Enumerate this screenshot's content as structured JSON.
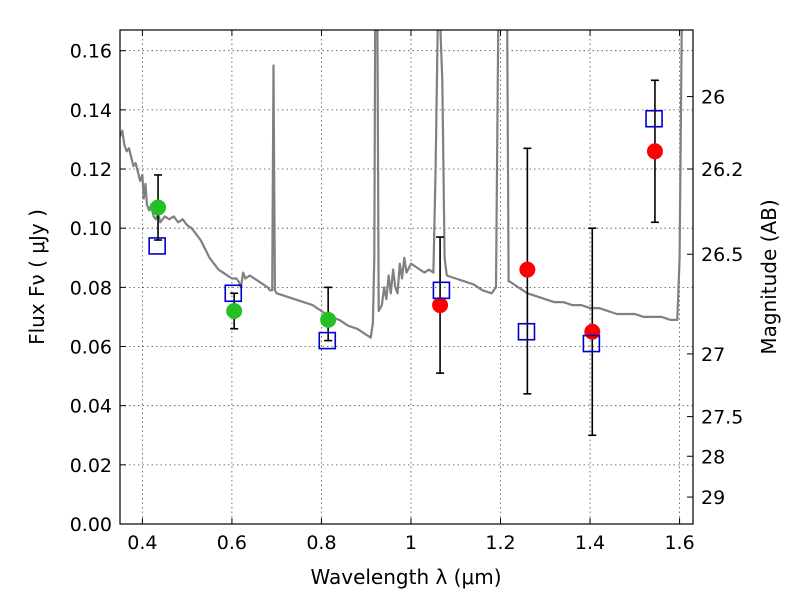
{
  "chart_data": {
    "type": "scatter",
    "title": "",
    "xlabel": "Wavelength  λ (μm)",
    "ylabel": "Flux  Fν  ( μJy )",
    "ylabel_right": "Magnitude (AB)",
    "xlim": [
      0.35,
      1.63
    ],
    "ylim": [
      0.0,
      0.167
    ],
    "grid": true,
    "x_ticks": [
      0.4,
      0.6,
      0.8,
      1.0,
      1.2,
      1.4,
      1.6
    ],
    "x_tick_labels": [
      "0.4",
      "0.6",
      "0.8",
      "1",
      "1.2",
      "1.4",
      "1.6"
    ],
    "y_ticks": [
      0.0,
      0.02,
      0.04,
      0.06,
      0.08,
      0.1,
      0.12,
      0.14,
      0.16
    ],
    "y_tick_labels": [
      "0.00",
      "0.02",
      "0.04",
      "0.06",
      "0.08",
      "0.10",
      "0.12",
      "0.14",
      "0.16"
    ],
    "right_ticks": [
      {
        "flux": 0.1445,
        "label": "26"
      },
      {
        "flux": 0.12,
        "label": "26.2"
      },
      {
        "flux": 0.0912,
        "label": "26.5"
      },
      {
        "flux": 0.0575,
        "label": "27"
      },
      {
        "flux": 0.0363,
        "label": "27.5"
      },
      {
        "flux": 0.0229,
        "label": "28"
      },
      {
        "flux": 0.0091,
        "label": "29"
      }
    ],
    "series": [
      {
        "kind": "model_spectrum",
        "color": "#808080",
        "points": [
          [
            0.35,
            0.131
          ],
          [
            0.355,
            0.133
          ],
          [
            0.36,
            0.128
          ],
          [
            0.365,
            0.126
          ],
          [
            0.37,
            0.127
          ],
          [
            0.375,
            0.124
          ],
          [
            0.38,
            0.121
          ],
          [
            0.385,
            0.122
          ],
          [
            0.39,
            0.119
          ],
          [
            0.395,
            0.116
          ],
          [
            0.4,
            0.118
          ],
          [
            0.403,
            0.11
          ],
          [
            0.407,
            0.115
          ],
          [
            0.41,
            0.108
          ],
          [
            0.415,
            0.106
          ],
          [
            0.42,
            0.108
          ],
          [
            0.425,
            0.104
          ],
          [
            0.43,
            0.103
          ],
          [
            0.435,
            0.105
          ],
          [
            0.44,
            0.102
          ],
          [
            0.45,
            0.104
          ],
          [
            0.46,
            0.103
          ],
          [
            0.47,
            0.104
          ],
          [
            0.48,
            0.102
          ],
          [
            0.49,
            0.103
          ],
          [
            0.5,
            0.101
          ],
          [
            0.51,
            0.1
          ],
          [
            0.52,
            0.098
          ],
          [
            0.53,
            0.096
          ],
          [
            0.54,
            0.093
          ],
          [
            0.55,
            0.09
          ],
          [
            0.56,
            0.088
          ],
          [
            0.57,
            0.086
          ],
          [
            0.58,
            0.085
          ],
          [
            0.59,
            0.084
          ],
          [
            0.6,
            0.083
          ],
          [
            0.61,
            0.083
          ],
          [
            0.615,
            0.082
          ],
          [
            0.62,
            0.08
          ],
          [
            0.625,
            0.085
          ],
          [
            0.63,
            0.083
          ],
          [
            0.64,
            0.084
          ],
          [
            0.65,
            0.083
          ],
          [
            0.66,
            0.082
          ],
          [
            0.67,
            0.081
          ],
          [
            0.68,
            0.08
          ],
          [
            0.685,
            0.079
          ],
          [
            0.69,
            0.079
          ],
          [
            0.693,
            0.155
          ],
          [
            0.696,
            0.079
          ],
          [
            0.7,
            0.078
          ],
          [
            0.72,
            0.077
          ],
          [
            0.74,
            0.076
          ],
          [
            0.76,
            0.075
          ],
          [
            0.78,
            0.074
          ],
          [
            0.8,
            0.072
          ],
          [
            0.82,
            0.07
          ],
          [
            0.84,
            0.069
          ],
          [
            0.86,
            0.067
          ],
          [
            0.88,
            0.066
          ],
          [
            0.9,
            0.064
          ],
          [
            0.91,
            0.063
          ],
          [
            0.915,
            0.068
          ],
          [
            0.918,
            0.09
          ],
          [
            0.92,
            0.17
          ],
          [
            0.925,
            0.17
          ],
          [
            0.928,
            0.072
          ],
          [
            0.935,
            0.074
          ],
          [
            0.94,
            0.08
          ],
          [
            0.945,
            0.076
          ],
          [
            0.95,
            0.084
          ],
          [
            0.955,
            0.078
          ],
          [
            0.96,
            0.086
          ],
          [
            0.965,
            0.08
          ],
          [
            0.97,
            0.078
          ],
          [
            0.975,
            0.088
          ],
          [
            0.98,
            0.083
          ],
          [
            0.985,
            0.09
          ],
          [
            0.99,
            0.085
          ],
          [
            1.0,
            0.088
          ],
          [
            1.01,
            0.087
          ],
          [
            1.02,
            0.086
          ],
          [
            1.03,
            0.085
          ],
          [
            1.04,
            0.086
          ],
          [
            1.05,
            0.085
          ],
          [
            1.055,
            0.12
          ],
          [
            1.06,
            0.17
          ],
          [
            1.065,
            0.17
          ],
          [
            1.07,
            0.15
          ],
          [
            1.075,
            0.09
          ],
          [
            1.08,
            0.084
          ],
          [
            1.1,
            0.083
          ],
          [
            1.12,
            0.082
          ],
          [
            1.14,
            0.081
          ],
          [
            1.16,
            0.079
          ],
          [
            1.18,
            0.078
          ],
          [
            1.19,
            0.08
          ],
          [
            1.195,
            0.17
          ],
          [
            1.215,
            0.17
          ],
          [
            1.218,
            0.082
          ],
          [
            1.22,
            0.082
          ],
          [
            1.24,
            0.08
          ],
          [
            1.26,
            0.078
          ],
          [
            1.28,
            0.077
          ],
          [
            1.3,
            0.076
          ],
          [
            1.32,
            0.075
          ],
          [
            1.34,
            0.075
          ],
          [
            1.36,
            0.074
          ],
          [
            1.38,
            0.074
          ],
          [
            1.4,
            0.073
          ],
          [
            1.42,
            0.073
          ],
          [
            1.44,
            0.072
          ],
          [
            1.46,
            0.071
          ],
          [
            1.48,
            0.071
          ],
          [
            1.5,
            0.071
          ],
          [
            1.52,
            0.07
          ],
          [
            1.54,
            0.07
          ],
          [
            1.56,
            0.07
          ],
          [
            1.58,
            0.069
          ],
          [
            1.595,
            0.069
          ],
          [
            1.6,
            0.09
          ],
          [
            1.605,
            0.17
          ]
        ]
      },
      {
        "kind": "observed_points",
        "color": "#22c022",
        "points": [
          {
            "x": 0.435,
            "y": 0.107,
            "err_low": 0.096,
            "err_high": 0.118
          },
          {
            "x": 0.605,
            "y": 0.072,
            "err_low": 0.066,
            "err_high": 0.078
          },
          {
            "x": 0.815,
            "y": 0.069,
            "err_low": 0.062,
            "err_high": 0.08
          }
        ]
      },
      {
        "kind": "observed_points",
        "color": "#ff0000",
        "points": [
          {
            "x": 1.065,
            "y": 0.074,
            "err_low": 0.051,
            "err_high": 0.097
          },
          {
            "x": 1.26,
            "y": 0.086,
            "err_low": 0.044,
            "err_high": 0.127
          },
          {
            "x": 1.405,
            "y": 0.065,
            "err_low": 0.03,
            "err_high": 0.1
          },
          {
            "x": 1.545,
            "y": 0.126,
            "err_low": 0.102,
            "err_high": 0.15
          }
        ]
      },
      {
        "kind": "model_photometry",
        "color": "#0000cc",
        "points": [
          {
            "x": 0.433,
            "y": 0.094
          },
          {
            "x": 0.603,
            "y": 0.078
          },
          {
            "x": 0.813,
            "y": 0.062
          },
          {
            "x": 1.068,
            "y": 0.079
          },
          {
            "x": 1.258,
            "y": 0.065
          },
          {
            "x": 1.403,
            "y": 0.061
          },
          {
            "x": 1.543,
            "y": 0.137
          }
        ]
      }
    ]
  }
}
